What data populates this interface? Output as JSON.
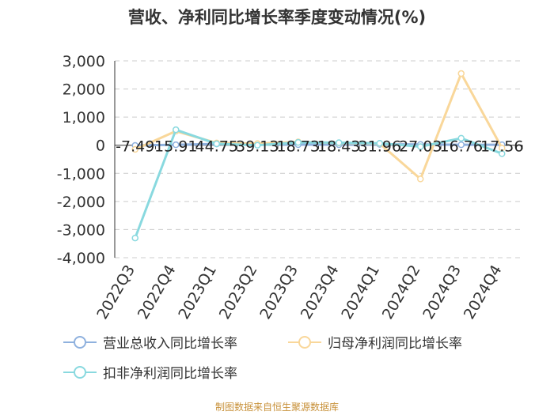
{
  "chart_data": {
    "type": "line",
    "title": "营收、净利同比增长率季度变动情况(%)",
    "categories": [
      "2022Q3",
      "2022Q4",
      "2023Q1",
      "2023Q2",
      "2023Q3",
      "2023Q4",
      "2024Q1",
      "2024Q2",
      "2024Q3",
      "2024Q4"
    ],
    "ylim": [
      -4000,
      3000
    ],
    "yticks": [
      3000,
      2000,
      1000,
      0,
      -1000,
      -2000,
      -3000,
      -4000
    ],
    "ytick_labels": [
      "3,000",
      "2,000",
      "1,000",
      "0",
      "-1,000",
      "-2,000",
      "-3,000",
      "-4,000"
    ],
    "grid": true,
    "legend_position": "bottom",
    "series": [
      {
        "name": "营业总收入同比增长率",
        "color": "#8fb1de",
        "values": [
          -7.49,
          15.91,
          44.75,
          39.13,
          18.73,
          18.43,
          31.96,
          27.03,
          16.76,
          17.56
        ]
      },
      {
        "name": "归母净利润同比增长率",
        "color": "#f9d79a",
        "values": [
          -150,
          500,
          80,
          60,
          120,
          80,
          60,
          -1200,
          2550,
          -100
        ]
      },
      {
        "name": "扣非净利润同比增长率",
        "color": "#89d9df",
        "values": [
          -3300,
          550,
          50,
          0,
          100,
          90,
          70,
          -50,
          250,
          -300
        ]
      }
    ],
    "data_labels": [
      "-7.49",
      "15.91",
      "44.75",
      "39.13",
      "18.73",
      "18.43",
      "31.96",
      "27.03",
      "16.76",
      "17.56"
    ]
  },
  "source_note": "制图数据来自恒生聚源数据库"
}
